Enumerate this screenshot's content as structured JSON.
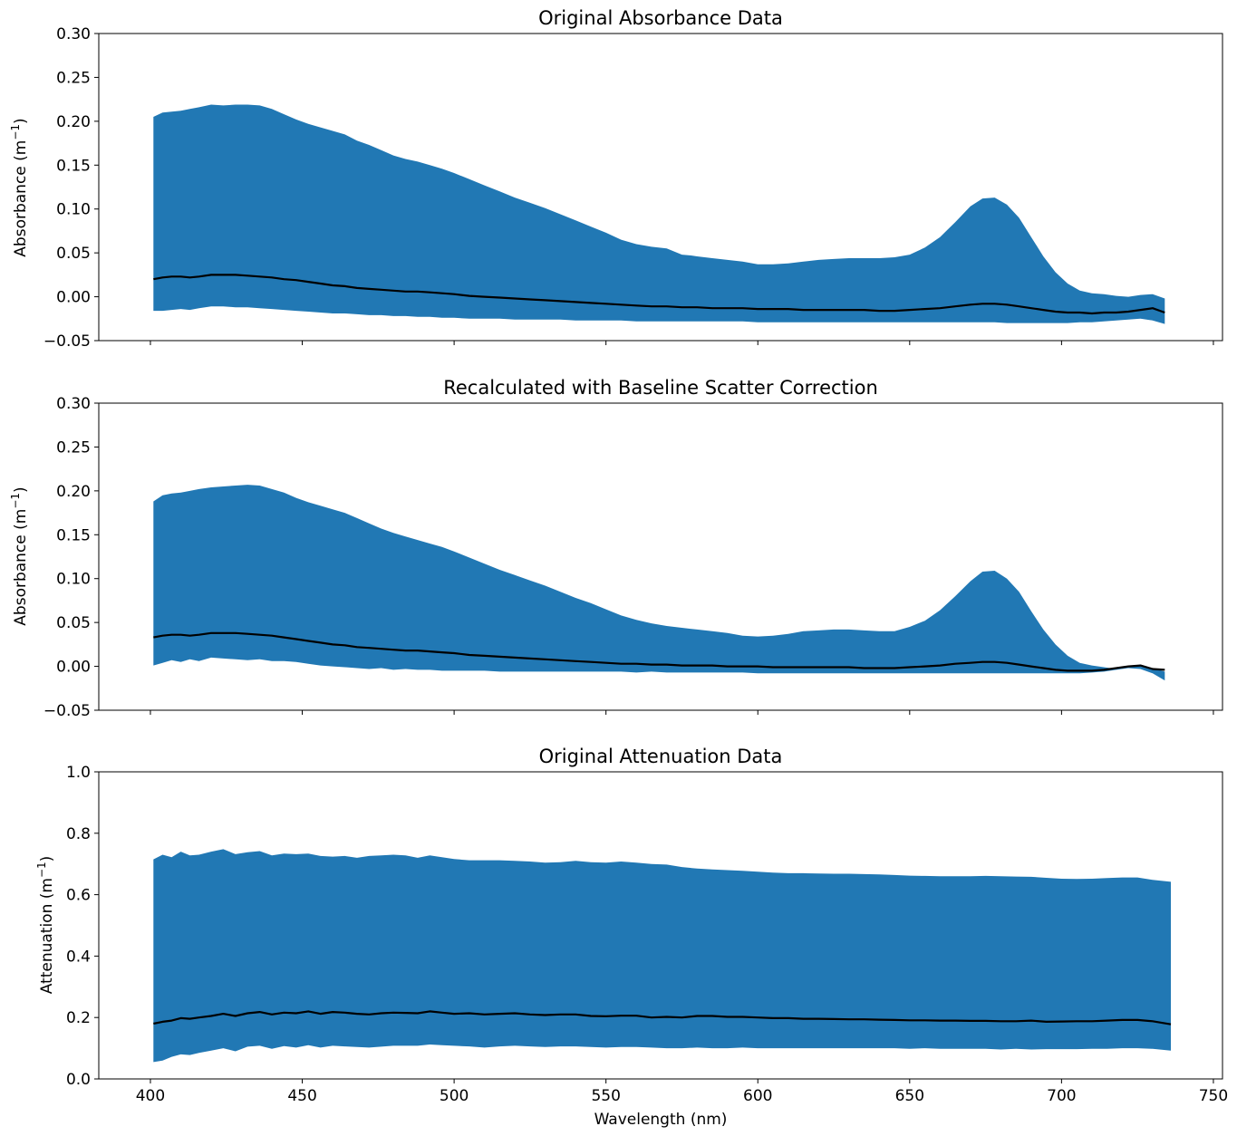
{
  "chart_data": [
    {
      "type": "area",
      "title": "Original Absorbance Data",
      "ylabel": "Absorbance (m",
      "ylabel_sup": "−1",
      "ylabel_close": ")",
      "xlabel": "",
      "xlim": [
        383,
        753
      ],
      "ylim": [
        -0.05,
        0.3
      ],
      "yticks": [
        "−0.05",
        "0.00",
        "0.05",
        "0.10",
        "0.15",
        "0.20",
        "0.25",
        "0.30"
      ],
      "ytick_values": [
        -0.05,
        0.0,
        0.05,
        0.1,
        0.15,
        0.2,
        0.25,
        0.3
      ],
      "xtick_values": [
        400,
        450,
        500,
        550,
        600,
        650,
        700,
        750
      ],
      "show_xticklabels": false,
      "fill_color": "#2178b4",
      "line_color": "#000000",
      "x": [
        401,
        404,
        407,
        410,
        413,
        416,
        420,
        424,
        428,
        432,
        436,
        440,
        444,
        448,
        452,
        456,
        460,
        464,
        468,
        472,
        476,
        480,
        484,
        488,
        492,
        496,
        500,
        505,
        510,
        515,
        520,
        525,
        530,
        535,
        540,
        545,
        550,
        555,
        560,
        565,
        570,
        575,
        578,
        580,
        585,
        590,
        595,
        600,
        605,
        610,
        615,
        620,
        625,
        630,
        635,
        640,
        645,
        650,
        655,
        660,
        665,
        670,
        674,
        678,
        682,
        686,
        690,
        694,
        698,
        702,
        706,
        710,
        714,
        718,
        722,
        726,
        730,
        734
      ],
      "upper": [
        0.205,
        0.21,
        0.211,
        0.212,
        0.214,
        0.216,
        0.219,
        0.218,
        0.219,
        0.219,
        0.218,
        0.214,
        0.208,
        0.202,
        0.197,
        0.193,
        0.189,
        0.185,
        0.178,
        0.173,
        0.167,
        0.161,
        0.157,
        0.154,
        0.15,
        0.146,
        0.141,
        0.134,
        0.127,
        0.12,
        0.113,
        0.107,
        0.101,
        0.094,
        0.087,
        0.08,
        0.073,
        0.065,
        0.06,
        0.057,
        0.055,
        0.048,
        0.047,
        0.046,
        0.044,
        0.042,
        0.04,
        0.037,
        0.037,
        0.038,
        0.04,
        0.042,
        0.043,
        0.044,
        0.044,
        0.044,
        0.045,
        0.048,
        0.056,
        0.068,
        0.085,
        0.103,
        0.112,
        0.113,
        0.105,
        0.09,
        0.068,
        0.046,
        0.028,
        0.015,
        0.007,
        0.004,
        0.003,
        0.001,
        0.0,
        0.002,
        0.003,
        -0.002
      ],
      "mean": [
        0.02,
        0.022,
        0.023,
        0.023,
        0.022,
        0.023,
        0.025,
        0.025,
        0.025,
        0.024,
        0.023,
        0.022,
        0.02,
        0.019,
        0.017,
        0.015,
        0.013,
        0.012,
        0.01,
        0.009,
        0.008,
        0.007,
        0.006,
        0.006,
        0.005,
        0.004,
        0.003,
        0.001,
        0.0,
        -0.001,
        -0.002,
        -0.003,
        -0.004,
        -0.005,
        -0.006,
        -0.007,
        -0.008,
        -0.009,
        -0.01,
        -0.011,
        -0.011,
        -0.012,
        -0.012,
        -0.012,
        -0.013,
        -0.013,
        -0.013,
        -0.014,
        -0.014,
        -0.014,
        -0.015,
        -0.015,
        -0.015,
        -0.015,
        -0.015,
        -0.016,
        -0.016,
        -0.015,
        -0.014,
        -0.013,
        -0.011,
        -0.009,
        -0.008,
        -0.008,
        -0.009,
        -0.011,
        -0.013,
        -0.015,
        -0.017,
        -0.018,
        -0.018,
        -0.019,
        -0.018,
        -0.018,
        -0.017,
        -0.015,
        -0.013,
        -0.018
      ],
      "lower": [
        -0.016,
        -0.016,
        -0.015,
        -0.014,
        -0.015,
        -0.013,
        -0.011,
        -0.011,
        -0.012,
        -0.012,
        -0.013,
        -0.014,
        -0.015,
        -0.016,
        -0.017,
        -0.018,
        -0.019,
        -0.019,
        -0.02,
        -0.021,
        -0.021,
        -0.022,
        -0.022,
        -0.023,
        -0.023,
        -0.024,
        -0.024,
        -0.025,
        -0.025,
        -0.025,
        -0.026,
        -0.026,
        -0.026,
        -0.026,
        -0.027,
        -0.027,
        -0.027,
        -0.027,
        -0.028,
        -0.028,
        -0.028,
        -0.028,
        -0.028,
        -0.028,
        -0.028,
        -0.028,
        -0.028,
        -0.029,
        -0.029,
        -0.029,
        -0.029,
        -0.029,
        -0.029,
        -0.029,
        -0.029,
        -0.029,
        -0.029,
        -0.029,
        -0.029,
        -0.029,
        -0.029,
        -0.029,
        -0.029,
        -0.029,
        -0.03,
        -0.03,
        -0.03,
        -0.03,
        -0.03,
        -0.03,
        -0.029,
        -0.029,
        -0.028,
        -0.027,
        -0.026,
        -0.025,
        -0.027,
        -0.031
      ]
    },
    {
      "type": "area",
      "title": "Recalculated with Baseline Scatter Correction",
      "ylabel": "Absorbance (m",
      "ylabel_sup": "−1",
      "ylabel_close": ")",
      "xlabel": "",
      "xlim": [
        383,
        753
      ],
      "ylim": [
        -0.05,
        0.3
      ],
      "yticks": [
        "−0.05",
        "0.00",
        "0.05",
        "0.10",
        "0.15",
        "0.20",
        "0.25",
        "0.30"
      ],
      "ytick_values": [
        -0.05,
        0.0,
        0.05,
        0.1,
        0.15,
        0.2,
        0.25,
        0.3
      ],
      "xtick_values": [
        400,
        450,
        500,
        550,
        600,
        650,
        700,
        750
      ],
      "show_xticklabels": false,
      "fill_color": "#2178b4",
      "line_color": "#000000",
      "x": [
        401,
        404,
        407,
        410,
        413,
        416,
        420,
        424,
        428,
        432,
        436,
        440,
        444,
        448,
        452,
        456,
        460,
        464,
        468,
        472,
        476,
        480,
        484,
        488,
        492,
        496,
        500,
        505,
        510,
        515,
        520,
        525,
        530,
        535,
        540,
        545,
        550,
        555,
        560,
        565,
        570,
        575,
        580,
        585,
        590,
        595,
        600,
        605,
        610,
        615,
        620,
        625,
        630,
        635,
        640,
        645,
        650,
        655,
        660,
        665,
        670,
        674,
        678,
        682,
        686,
        690,
        694,
        698,
        702,
        706,
        710,
        714,
        718,
        722,
        726,
        730,
        734
      ],
      "upper": [
        0.188,
        0.195,
        0.197,
        0.198,
        0.2,
        0.202,
        0.204,
        0.205,
        0.206,
        0.207,
        0.206,
        0.202,
        0.198,
        0.192,
        0.187,
        0.183,
        0.179,
        0.175,
        0.169,
        0.163,
        0.157,
        0.152,
        0.148,
        0.144,
        0.14,
        0.136,
        0.131,
        0.124,
        0.117,
        0.11,
        0.104,
        0.098,
        0.092,
        0.085,
        0.078,
        0.072,
        0.065,
        0.058,
        0.053,
        0.049,
        0.046,
        0.044,
        0.042,
        0.04,
        0.038,
        0.035,
        0.034,
        0.035,
        0.037,
        0.04,
        0.041,
        0.042,
        0.042,
        0.041,
        0.04,
        0.04,
        0.045,
        0.052,
        0.064,
        0.08,
        0.097,
        0.108,
        0.109,
        0.1,
        0.085,
        0.063,
        0.042,
        0.025,
        0.012,
        0.004,
        0.001,
        -0.001,
        -0.003,
        -0.001,
        0.002,
        -0.002,
        -0.006
      ],
      "mean": [
        0.033,
        0.035,
        0.036,
        0.036,
        0.035,
        0.036,
        0.038,
        0.038,
        0.038,
        0.037,
        0.036,
        0.035,
        0.033,
        0.031,
        0.029,
        0.027,
        0.025,
        0.024,
        0.022,
        0.021,
        0.02,
        0.019,
        0.018,
        0.018,
        0.017,
        0.016,
        0.015,
        0.013,
        0.012,
        0.011,
        0.01,
        0.009,
        0.008,
        0.007,
        0.006,
        0.005,
        0.004,
        0.003,
        0.003,
        0.002,
        0.002,
        0.001,
        0.001,
        0.001,
        0.0,
        0.0,
        0.0,
        -0.001,
        -0.001,
        -0.001,
        -0.001,
        -0.001,
        -0.001,
        -0.002,
        -0.002,
        -0.002,
        -0.001,
        0.0,
        0.001,
        0.003,
        0.004,
        0.005,
        0.005,
        0.004,
        0.002,
        0.0,
        -0.002,
        -0.004,
        -0.005,
        -0.005,
        -0.005,
        -0.004,
        -0.002,
        0.0,
        0.001,
        -0.003,
        -0.004
      ],
      "lower": [
        0.001,
        0.004,
        0.007,
        0.005,
        0.008,
        0.006,
        0.01,
        0.009,
        0.008,
        0.007,
        0.008,
        0.006,
        0.006,
        0.005,
        0.003,
        0.001,
        0.0,
        -0.001,
        -0.002,
        -0.003,
        -0.002,
        -0.004,
        -0.003,
        -0.004,
        -0.004,
        -0.005,
        -0.005,
        -0.005,
        -0.005,
        -0.006,
        -0.006,
        -0.006,
        -0.006,
        -0.006,
        -0.006,
        -0.006,
        -0.006,
        -0.006,
        -0.007,
        -0.006,
        -0.007,
        -0.007,
        -0.007,
        -0.007,
        -0.007,
        -0.007,
        -0.008,
        -0.008,
        -0.008,
        -0.008,
        -0.008,
        -0.008,
        -0.008,
        -0.008,
        -0.008,
        -0.008,
        -0.008,
        -0.008,
        -0.008,
        -0.008,
        -0.008,
        -0.008,
        -0.008,
        -0.008,
        -0.008,
        -0.008,
        -0.008,
        -0.008,
        -0.008,
        -0.008,
        -0.007,
        -0.006,
        -0.004,
        -0.002,
        -0.003,
        -0.008,
        -0.016
      ]
    },
    {
      "type": "area",
      "title": "Original Attenuation Data",
      "ylabel": "Attenuation (m",
      "ylabel_sup": "−1",
      "ylabel_close": ")",
      "xlabel": "Wavelength (nm)",
      "xlim": [
        383,
        753
      ],
      "ylim": [
        0.0,
        1.0
      ],
      "yticks": [
        "0.0",
        "0.2",
        "0.4",
        "0.6",
        "0.8",
        "1.0"
      ],
      "ytick_values": [
        0.0,
        0.2,
        0.4,
        0.6,
        0.8,
        1.0
      ],
      "xticks": [
        "400",
        "450",
        "500",
        "550",
        "600",
        "650",
        "700",
        "750"
      ],
      "xtick_values": [
        400,
        450,
        500,
        550,
        600,
        650,
        700,
        750
      ],
      "show_xticklabels": true,
      "fill_color": "#2178b4",
      "line_color": "#000000",
      "x": [
        401,
        404,
        407,
        410,
        413,
        416,
        420,
        424,
        428,
        432,
        436,
        440,
        444,
        448,
        452,
        456,
        460,
        464,
        468,
        472,
        476,
        480,
        484,
        488,
        492,
        496,
        500,
        505,
        510,
        515,
        520,
        525,
        530,
        535,
        540,
        545,
        550,
        555,
        560,
        565,
        570,
        575,
        580,
        585,
        590,
        595,
        600,
        605,
        610,
        615,
        620,
        625,
        630,
        635,
        640,
        645,
        650,
        655,
        660,
        665,
        670,
        675,
        680,
        685,
        690,
        695,
        700,
        705,
        710,
        715,
        720,
        725,
        730,
        736
      ],
      "upper": [
        0.715,
        0.73,
        0.722,
        0.74,
        0.728,
        0.73,
        0.74,
        0.748,
        0.732,
        0.738,
        0.742,
        0.728,
        0.734,
        0.732,
        0.734,
        0.726,
        0.724,
        0.726,
        0.72,
        0.726,
        0.728,
        0.73,
        0.728,
        0.72,
        0.728,
        0.722,
        0.716,
        0.712,
        0.712,
        0.712,
        0.71,
        0.708,
        0.704,
        0.706,
        0.71,
        0.706,
        0.704,
        0.708,
        0.704,
        0.7,
        0.698,
        0.69,
        0.685,
        0.682,
        0.68,
        0.678,
        0.675,
        0.672,
        0.67,
        0.67,
        0.669,
        0.668,
        0.668,
        0.667,
        0.666,
        0.664,
        0.662,
        0.661,
        0.66,
        0.66,
        0.66,
        0.661,
        0.66,
        0.659,
        0.658,
        0.655,
        0.652,
        0.651,
        0.652,
        0.654,
        0.656,
        0.656,
        0.648,
        0.642
      ],
      "mean": [
        0.18,
        0.186,
        0.19,
        0.198,
        0.196,
        0.2,
        0.205,
        0.212,
        0.205,
        0.214,
        0.218,
        0.21,
        0.216,
        0.214,
        0.22,
        0.212,
        0.218,
        0.216,
        0.212,
        0.21,
        0.214,
        0.216,
        0.215,
        0.214,
        0.22,
        0.216,
        0.212,
        0.214,
        0.21,
        0.212,
        0.214,
        0.21,
        0.208,
        0.21,
        0.21,
        0.205,
        0.204,
        0.206,
        0.206,
        0.2,
        0.202,
        0.2,
        0.205,
        0.205,
        0.202,
        0.202,
        0.2,
        0.198,
        0.198,
        0.196,
        0.196,
        0.195,
        0.194,
        0.194,
        0.193,
        0.192,
        0.191,
        0.191,
        0.19,
        0.19,
        0.189,
        0.189,
        0.188,
        0.188,
        0.19,
        0.186,
        0.187,
        0.188,
        0.188,
        0.19,
        0.192,
        0.192,
        0.188,
        0.178
      ],
      "lower": [
        0.055,
        0.06,
        0.072,
        0.08,
        0.078,
        0.085,
        0.092,
        0.1,
        0.09,
        0.105,
        0.108,
        0.098,
        0.107,
        0.102,
        0.11,
        0.102,
        0.108,
        0.106,
        0.104,
        0.102,
        0.105,
        0.108,
        0.108,
        0.108,
        0.112,
        0.11,
        0.108,
        0.106,
        0.102,
        0.106,
        0.108,
        0.106,
        0.104,
        0.106,
        0.106,
        0.104,
        0.102,
        0.104,
        0.104,
        0.102,
        0.1,
        0.1,
        0.102,
        0.1,
        0.1,
        0.102,
        0.1,
        0.1,
        0.1,
        0.1,
        0.1,
        0.1,
        0.1,
        0.1,
        0.1,
        0.1,
        0.098,
        0.1,
        0.098,
        0.098,
        0.098,
        0.098,
        0.096,
        0.098,
        0.096,
        0.097,
        0.097,
        0.097,
        0.098,
        0.098,
        0.1,
        0.1,
        0.098,
        0.092
      ]
    }
  ]
}
